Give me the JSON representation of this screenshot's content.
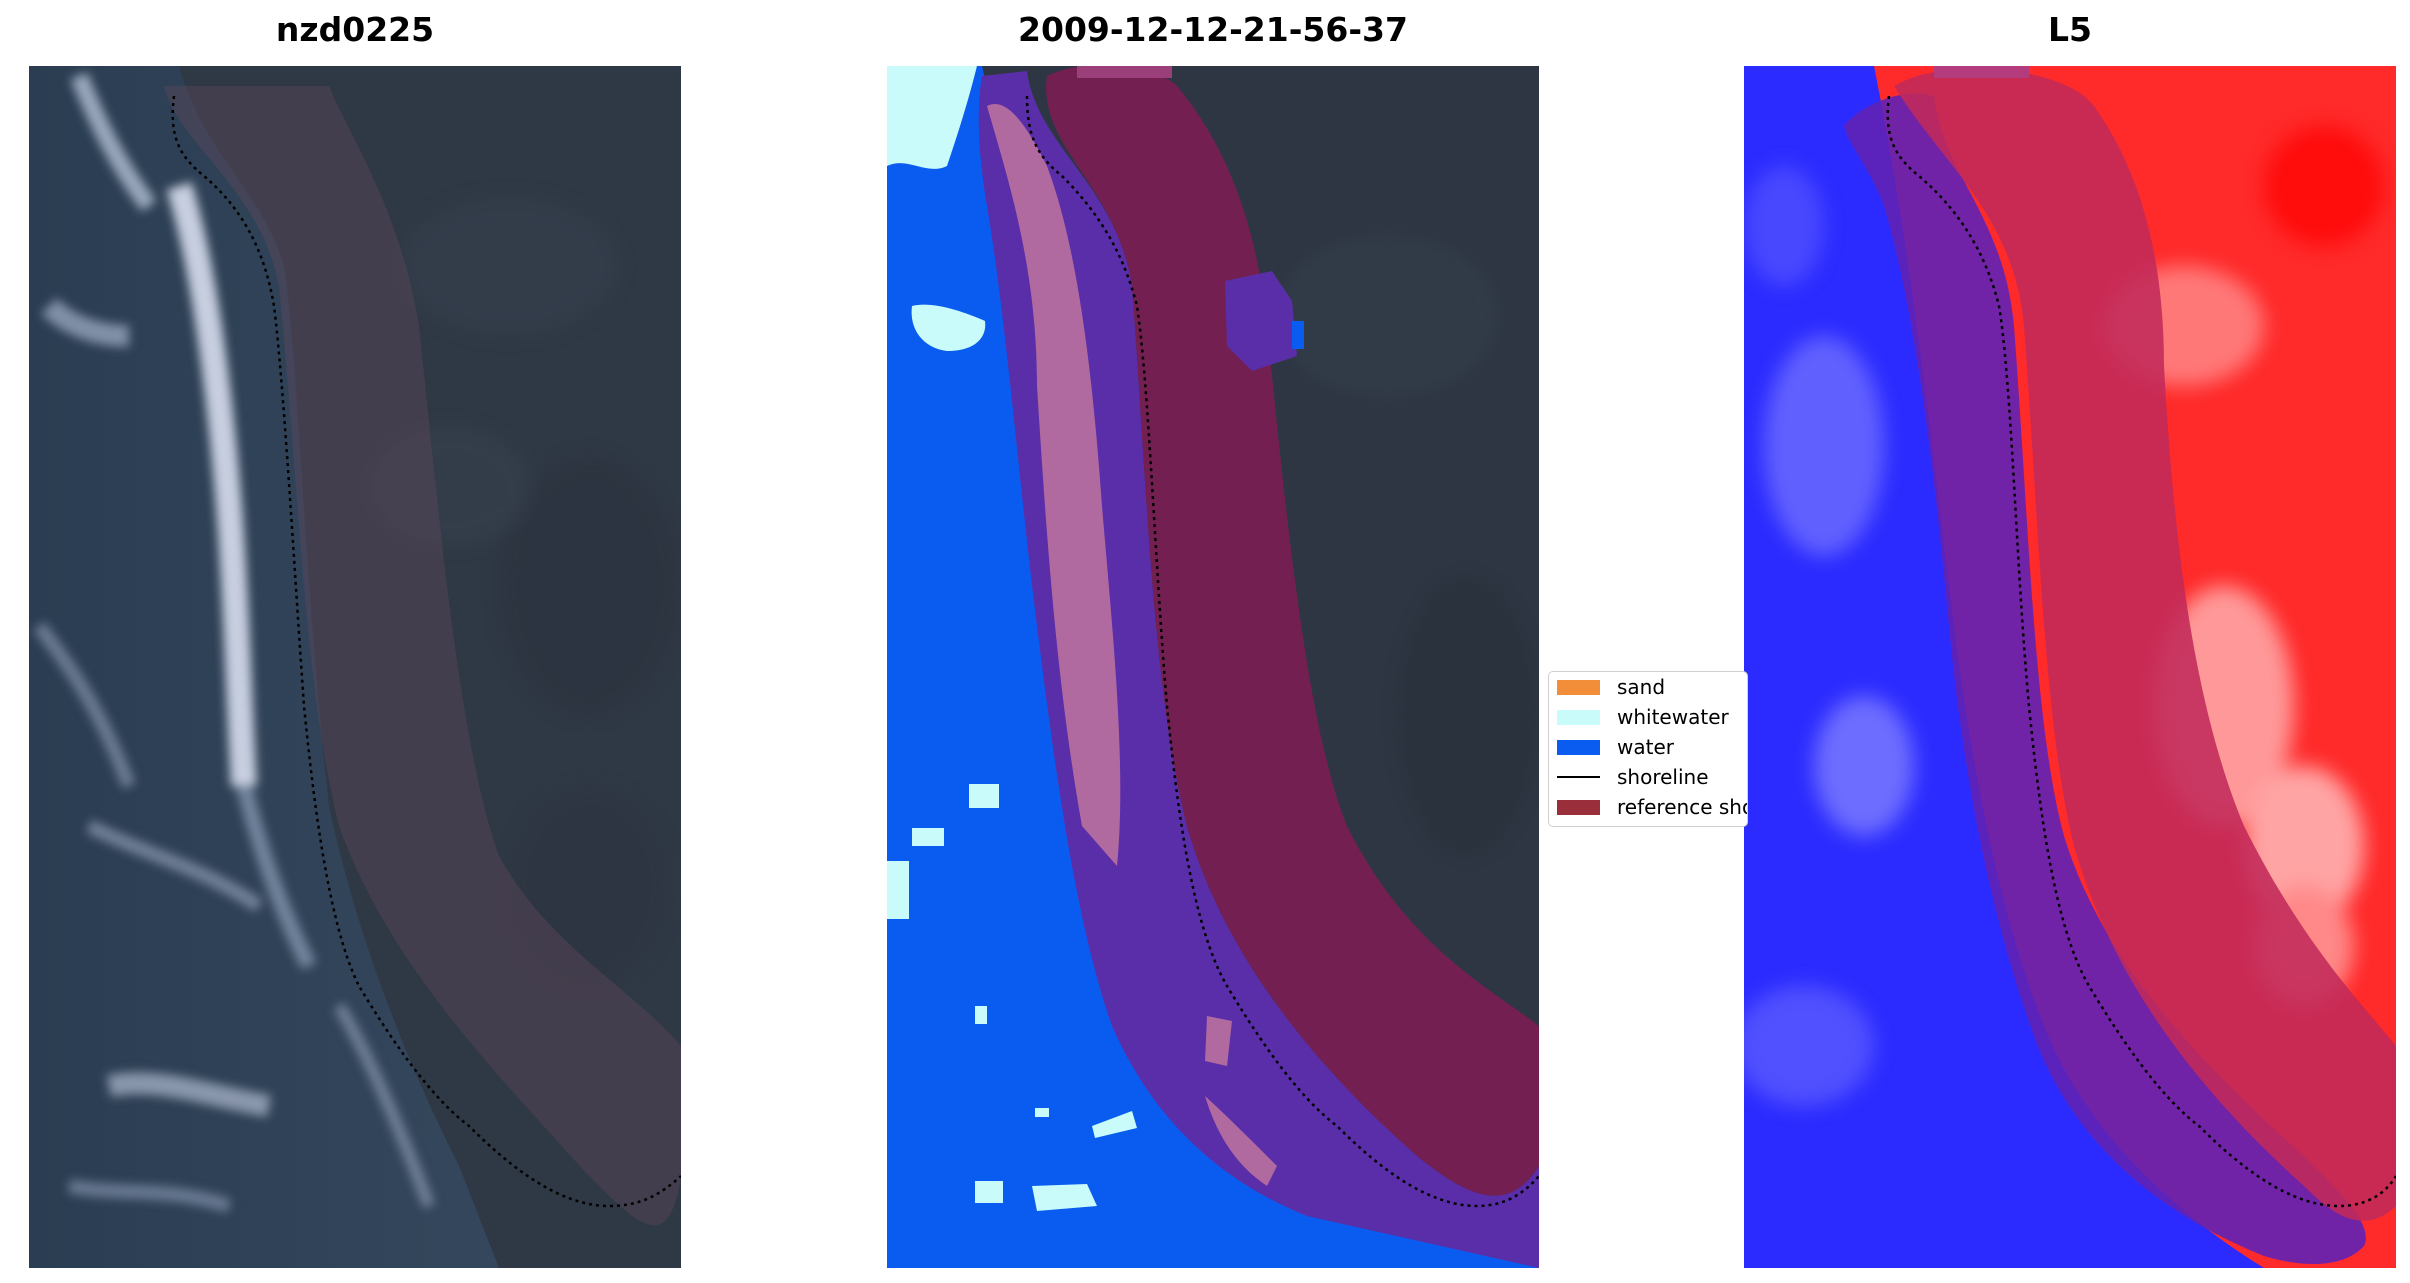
{
  "panels": [
    {
      "title": "nzd0225",
      "kind": "rgb-satellite-image"
    },
    {
      "title": "2009-12-12-21-56-37",
      "kind": "classified-image"
    },
    {
      "title": "L5",
      "kind": "index-image"
    }
  ],
  "legend": {
    "entries": [
      {
        "label": "sand",
        "color": "#f28d3a",
        "kind": "patch"
      },
      {
        "label": "whitewater",
        "color": "#c8fbf9",
        "kind": "patch"
      },
      {
        "label": "water",
        "color": "#0a5cf0",
        "kind": "patch"
      },
      {
        "label": "shoreline",
        "color": "#000000",
        "kind": "line"
      },
      {
        "label": "reference shoreline buffer",
        "color": "#9a2e3a",
        "kind": "patch"
      }
    ]
  },
  "colors": {
    "water": "#0a5cf0",
    "whitewater": "#c8fbf9",
    "land": "#2e3643",
    "buffer": "#9a2e3a",
    "index_low": "#1a1aff",
    "index_high": "#ff1a1a"
  }
}
